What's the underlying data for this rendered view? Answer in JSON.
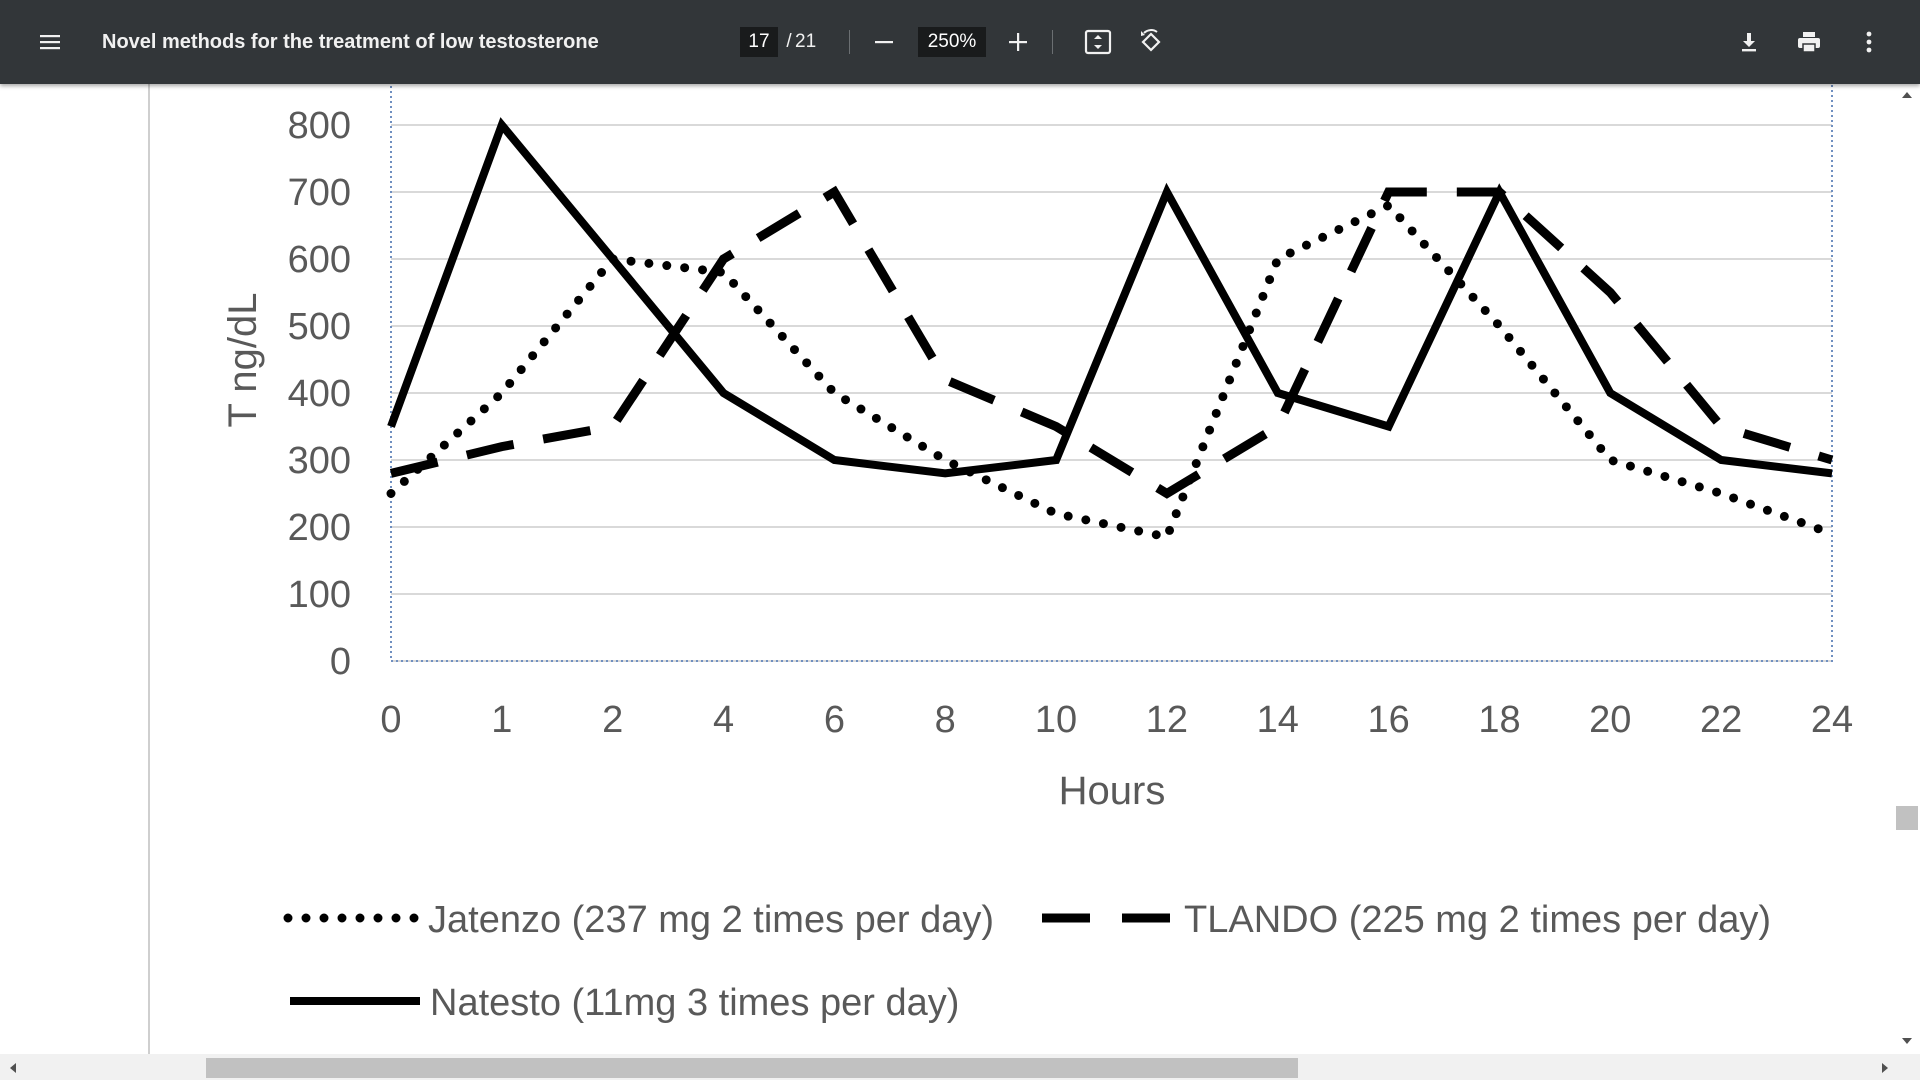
{
  "toolbar": {
    "title": "Novel methods for the treatment of low testosterone",
    "page_current": "17",
    "page_separator": "/",
    "page_total": "21",
    "zoom": "250%",
    "icons": [
      "menu-icon",
      "zoom-out-icon",
      "zoom-in-icon",
      "fit-to-page-icon",
      "rotate-icon",
      "download-icon",
      "print-icon",
      "more-vert-icon"
    ],
    "bg_color": "#323639"
  },
  "chart_data": {
    "type": "line",
    "title": "",
    "xlabel": "Hours",
    "ylabel": "T ng/dL",
    "categories": [
      "0",
      "1",
      "2",
      "4",
      "6",
      "8",
      "10",
      "12",
      "14",
      "16",
      "18",
      "20",
      "22",
      "24"
    ],
    "ylim": [
      0,
      800
    ],
    "yticks": [
      "0",
      "100",
      "200",
      "300",
      "400",
      "500",
      "600",
      "700",
      "800"
    ],
    "grid": true,
    "legend_position": "bottom",
    "series": [
      {
        "name": "Jatenzo (237 mg 2 times per day)",
        "style": "dotted",
        "values": [
          250,
          400,
          600,
          580,
          400,
          300,
          220,
          185,
          600,
          680,
          500,
          300,
          250,
          190
        ]
      },
      {
        "name": "TLANDO (225 mg 2 times per day)",
        "style": "dashed",
        "values": [
          280,
          320,
          350,
          600,
          700,
          420,
          350,
          250,
          350,
          700,
          700,
          550,
          350,
          300
        ]
      },
      {
        "name": "Natesto (11mg 3 times per day)",
        "style": "solid",
        "values": [
          350,
          800,
          600,
          400,
          300,
          280,
          300,
          700,
          400,
          350,
          700,
          400,
          300,
          280
        ]
      }
    ]
  }
}
